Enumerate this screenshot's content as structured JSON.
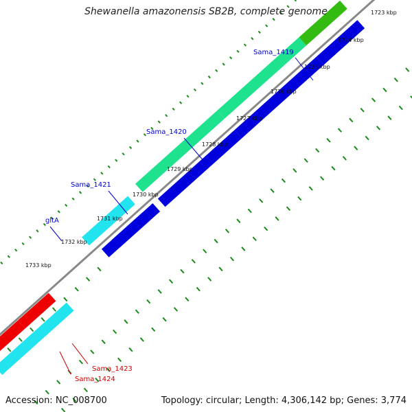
{
  "title": "Shewanella amazonensis SB2B, complete genome",
  "footer": {
    "accession": "Accession: NC_008700",
    "summary": "Topology: circular; Length: 4,306,142 bp; Genes: 3,774"
  },
  "colors": {
    "background": "#ffffff",
    "backbone": "#888888",
    "tick": "#1a8a1a",
    "forward_cds": "#1ee28e",
    "reverse_cds": "#0000dd",
    "cyan_gene": "#22e4ee",
    "red_gene": "#ee0000",
    "green_gene": "#33bb11",
    "forward_label": "#0000cc",
    "reverse_label": "#cc0000"
  },
  "tick_labels": [
    "1723 kbp",
    "1724 kbp",
    "1725 kbp",
    "1726 kbp",
    "1727 kbp",
    "1728 kbp",
    "1729 kbp",
    "1730 kbp",
    "1731 kbp",
    "1732 kbp",
    "1733 kbp"
  ],
  "gene_labels": [
    {
      "text": "Sama_1419",
      "strand": "forward"
    },
    {
      "text": "Sama_1420",
      "strand": "forward"
    },
    {
      "text": "Sama_1421",
      "strand": "forward"
    },
    {
      "text": "gltA",
      "strand": "forward"
    },
    {
      "text": "Sama_1423",
      "strand": "reverse"
    },
    {
      "text": "Sama_1424",
      "strand": "reverse"
    }
  ]
}
